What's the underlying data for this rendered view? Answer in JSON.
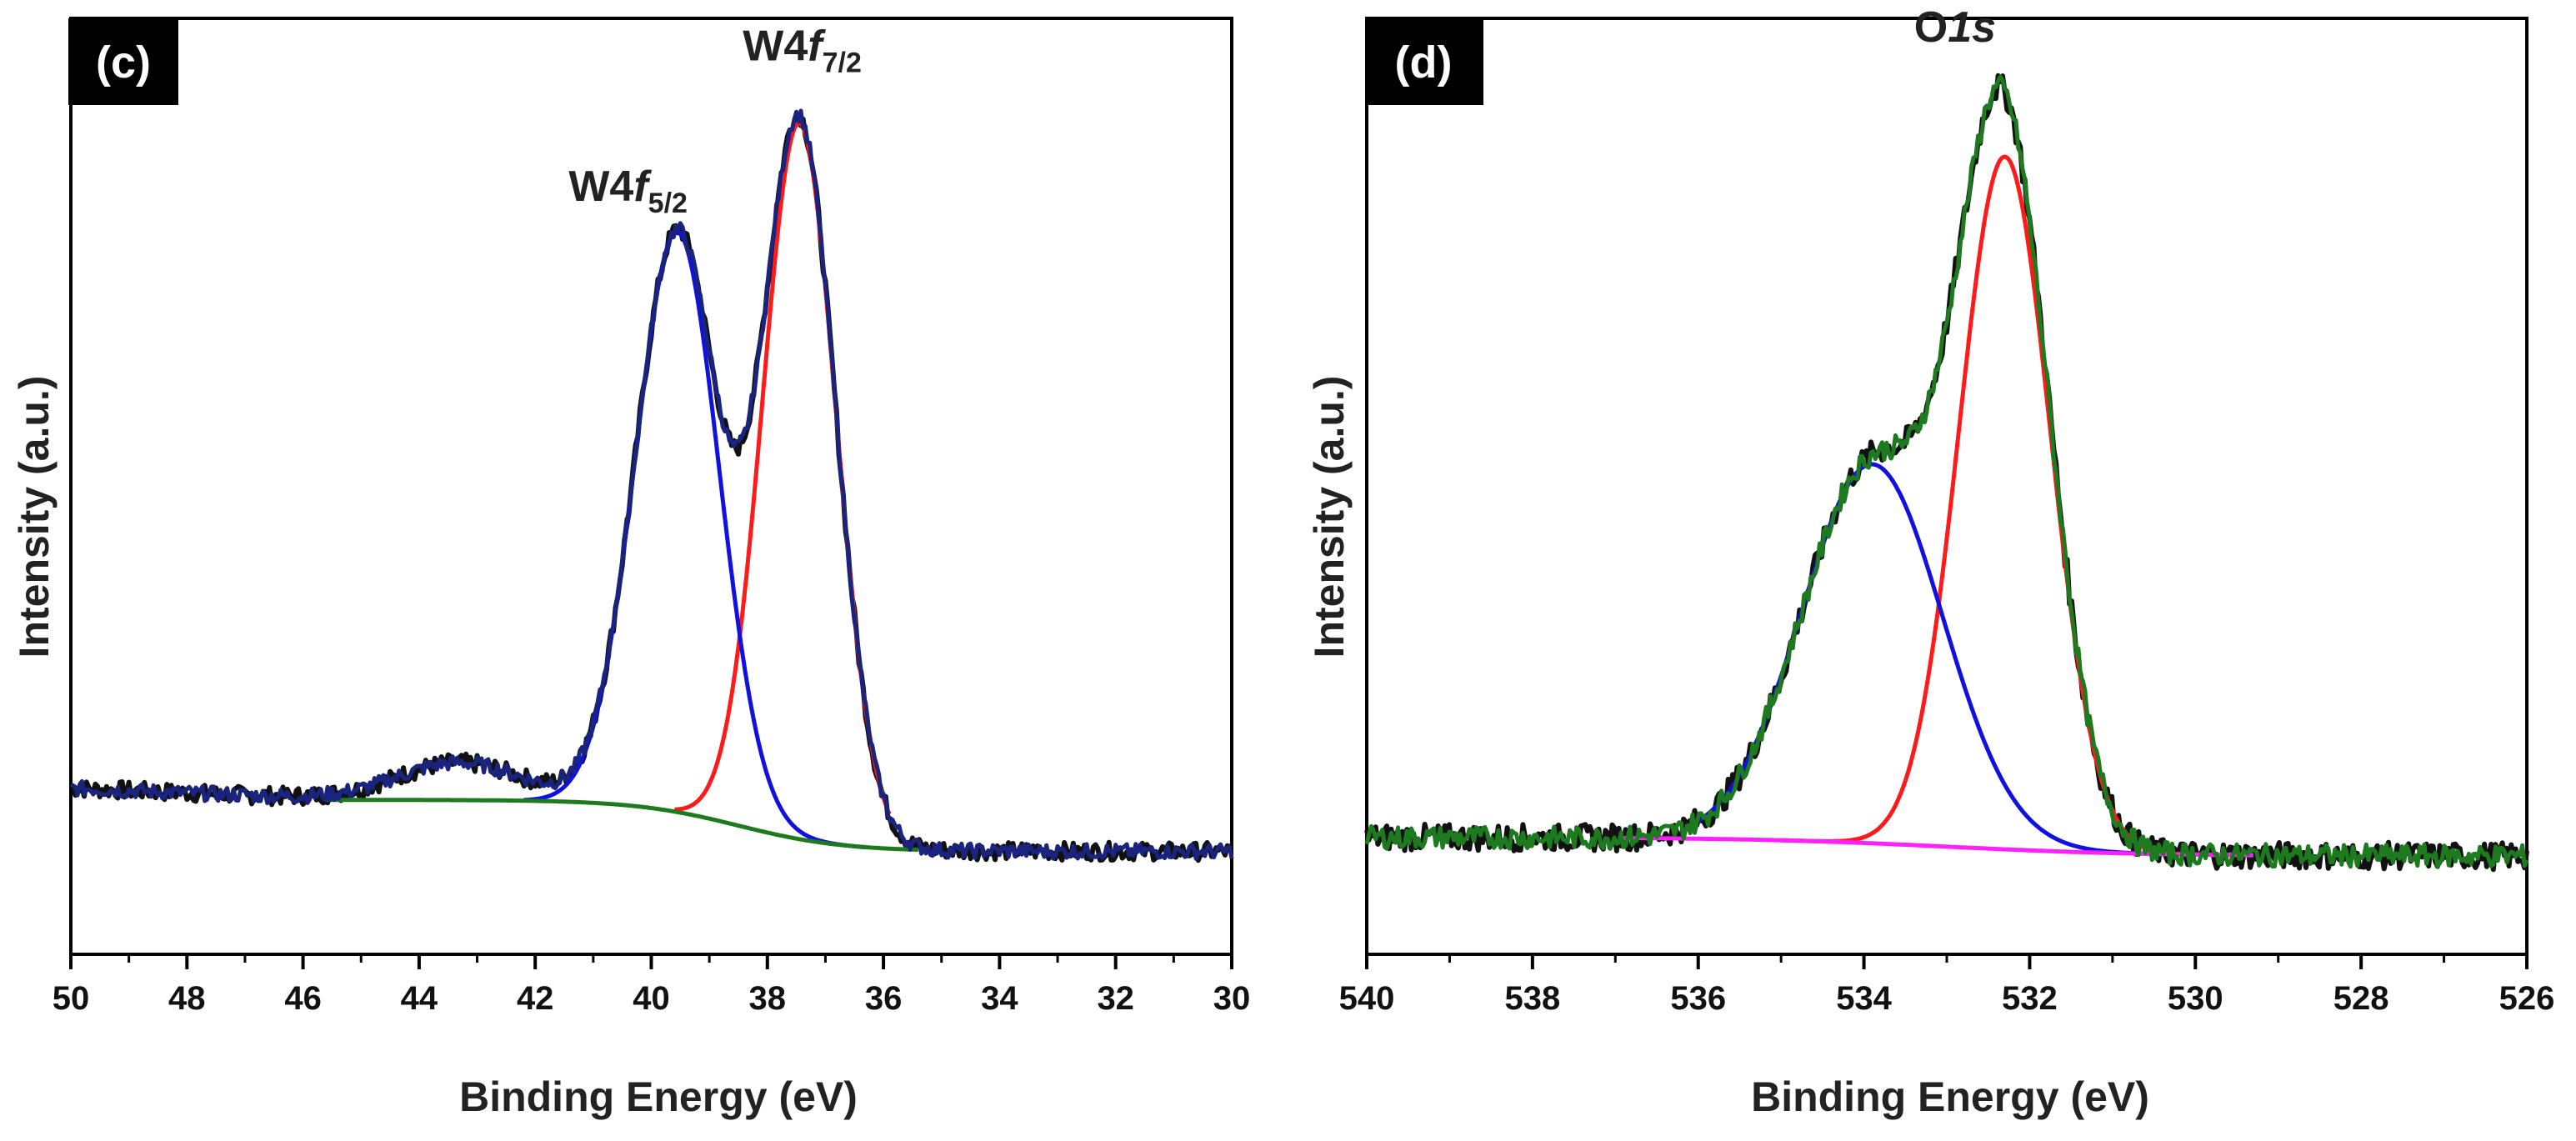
{
  "colors": {
    "raw": "#111111",
    "envelope_c": "#1a237e",
    "envelope_d": "#1e7a1e",
    "peak_red": "#ff1a1a",
    "peak_blue": "#1010e0",
    "bg_c": "#1e7a1e",
    "bg_d": "#ff20ff",
    "tag_bg": "#000000"
  },
  "chart_data": [
    {
      "type": "line",
      "panel_label": "(c)",
      "xlabel": "Binding Energy (eV)",
      "ylabel": "Intensity (a.u.)",
      "xlim": [
        50,
        30
      ],
      "ylim": [
        0,
        1.0
      ],
      "x_ticks": [
        "50",
        "48",
        "46",
        "44",
        "42",
        "40",
        "38",
        "36",
        "34",
        "32",
        "30"
      ],
      "annotations": [
        {
          "id": "ann-w4f72",
          "main": "W4",
          "italic": "f",
          "sub": "7/2",
          "x": 37.4,
          "y": 0.955
        },
        {
          "id": "ann-w4f52",
          "main": "W4",
          "italic": "f",
          "sub": "5/2",
          "x": 40.4,
          "y": 0.805
        }
      ],
      "series": [
        {
          "name": "peak W4f7/2",
          "color": "#ff1a1a",
          "kind": "gauss",
          "center": 37.45,
          "height": 0.765,
          "sigma": 0.63,
          "baseline": "bg",
          "x_range": [
            39.6,
            35.9
          ]
        },
        {
          "name": "peak W4f5/2",
          "color": "#1010e0",
          "kind": "gauss",
          "center": 39.55,
          "height": 0.62,
          "sigma": 0.72,
          "baseline": "bg",
          "x_range": [
            42.2,
            36.3
          ]
        },
        {
          "name": "background",
          "color": "#1e7a1e",
          "kind": "background",
          "low": 0.11,
          "high": 0.165,
          "center": 38.5,
          "width": 0.9,
          "x_range": [
            45.6,
            35.4
          ]
        },
        {
          "name": "fit envelope",
          "color": "#1a237e",
          "kind": "envelope",
          "bg": {
            "low": 0.11,
            "high": 0.165,
            "center": 38.5,
            "width": 0.9
          },
          "peaks": [
            {
              "center": 37.45,
              "height": 0.765,
              "sigma": 0.63
            },
            {
              "center": 39.55,
              "height": 0.62,
              "sigma": 0.72
            },
            {
              "center": 43.3,
              "height": 0.04,
              "sigma": 1.1
            }
          ],
          "pre_edge": {
            "slope": 0.0025,
            "anchor": 50,
            "base": 0.165
          },
          "x_range": [
            50,
            30
          ],
          "noise": 0.008
        }
      ]
    },
    {
      "type": "line",
      "panel_label": "(d)",
      "xlabel": "Binding Energy (eV)",
      "ylabel": "Intensity (a.u.)",
      "xlim": [
        540,
        526
      ],
      "ylim": [
        0,
        1.0
      ],
      "x_ticks": [
        "540",
        "538",
        "536",
        "534",
        "532",
        "530",
        "528",
        "526"
      ],
      "annotations": [
        {
          "id": "ann-o1s",
          "main": "O",
          "italic": "1s",
          "sub": "",
          "x": 532.9,
          "y": 0.975
        }
      ],
      "series": [
        {
          "name": "peak 532.3 eV",
          "color": "#ff1a1a",
          "kind": "gauss",
          "center": 532.3,
          "height": 0.74,
          "sigma": 0.55,
          "baseline": "bg",
          "x_range": [
            535.0,
            529.6
          ]
        },
        {
          "name": "peak 533.9 eV",
          "color": "#1010e0",
          "kind": "gauss",
          "center": 533.9,
          "height": 0.405,
          "sigma": 0.85,
          "baseline": "bg",
          "x_range": [
            536.0,
            530.0
          ]
        },
        {
          "name": "background",
          "color": "#ff20ff",
          "kind": "background",
          "low": 0.105,
          "high": 0.125,
          "center": 533.0,
          "width": 1.2,
          "x_range": [
            536.9,
            529.3
          ]
        },
        {
          "name": "fit envelope",
          "color": "#1e7a1e",
          "kind": "envelope",
          "bg": {
            "low": 0.105,
            "high": 0.125,
            "center": 533.0,
            "width": 1.2
          },
          "peaks": [
            {
              "center": 532.3,
              "height": 0.74,
              "sigma": 0.55
            },
            {
              "center": 533.9,
              "height": 0.405,
              "sigma": 0.85
            }
          ],
          "pre_edge": {
            "slope": 0.0,
            "anchor": 540,
            "base": 0.14
          },
          "x_range": [
            540,
            526
          ],
          "noise": 0.012
        }
      ]
    }
  ]
}
